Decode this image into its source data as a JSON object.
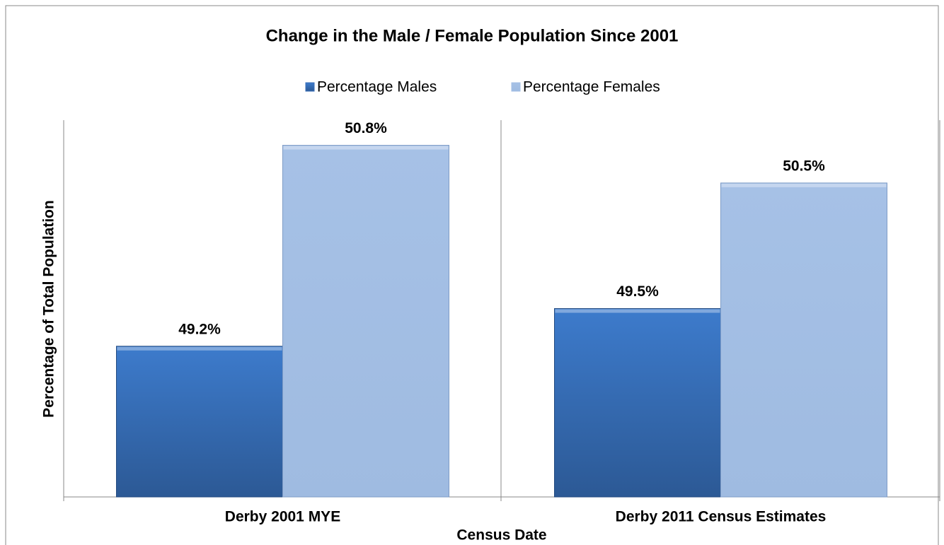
{
  "chart_data": {
    "type": "bar",
    "title": "Change in the Male / Female Population Since 2001",
    "categories": [
      "Derby 2001 MYE",
      "Derby 2011 Census Estimates"
    ],
    "series": [
      {
        "name": "Percentage Males",
        "color": "#3a6fb8",
        "values": [
          49.2,
          49.5
        ],
        "value_labels": [
          "49.2%",
          "49.5%"
        ]
      },
      {
        "name": "Percentage Females",
        "color": "#a3bfe4",
        "values": [
          50.8,
          50.5
        ],
        "value_labels": [
          "50.8%",
          "50.5%"
        ]
      }
    ],
    "y_label": "Percentage of Total Population",
    "x_label": "Census Date",
    "ylim": [
      48,
      51
    ],
    "legend": "top"
  }
}
